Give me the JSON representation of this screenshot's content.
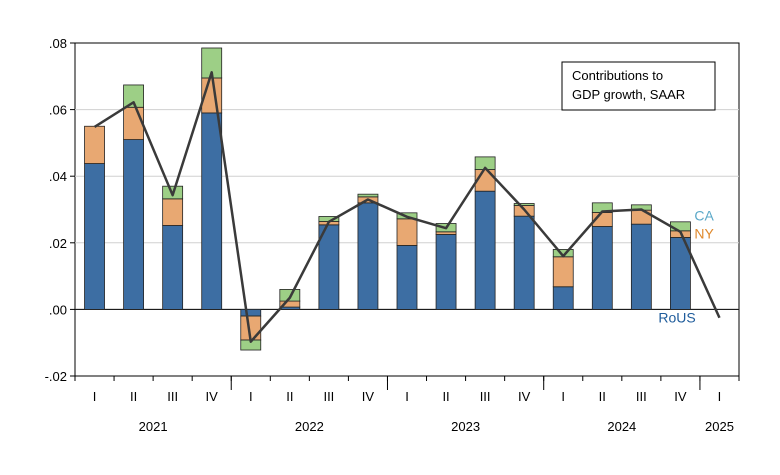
{
  "chart_data": {
    "type": "bar",
    "stacked": true,
    "annotation": [
      "Contributions to",
      "GDP growth, SAAR"
    ],
    "quarters": [
      "I",
      "II",
      "III",
      "IV",
      "I",
      "II",
      "III",
      "IV",
      "I",
      "II",
      "III",
      "IV",
      "I",
      "II",
      "III",
      "IV",
      "I"
    ],
    "years": [
      {
        "label": "2021",
        "start": 0,
        "end": 3
      },
      {
        "label": "2022",
        "start": 4,
        "end": 7
      },
      {
        "label": "2023",
        "start": 8,
        "end": 11
      },
      {
        "label": "2024",
        "start": 12,
        "end": 15
      },
      {
        "label": "2025",
        "start": 16,
        "end": 16
      }
    ],
    "ylim": [
      -0.02,
      0.08
    ],
    "yticks": [
      -0.02,
      0.0,
      0.02,
      0.04,
      0.06,
      0.08
    ],
    "ytick_labels": [
      "-.02",
      ".00",
      ".02",
      ".04",
      ".06",
      ".08"
    ],
    "grid": true,
    "series": [
      {
        "name": "RoUS",
        "color": "#3d6ea3",
        "values": [
          0.0438,
          0.051,
          0.0252,
          0.059,
          -0.002,
          0.0007,
          0.0254,
          0.032,
          0.0192,
          0.0225,
          0.0355,
          0.028,
          0.0068,
          0.0249,
          0.0256,
          0.0216,
          null
        ]
      },
      {
        "name": "NY",
        "color": "#e8a872",
        "values": [
          0.0112,
          0.0097,
          0.008,
          0.0105,
          -0.0072,
          0.0018,
          0.001,
          0.0018,
          0.008,
          0.0008,
          0.0065,
          0.0032,
          0.009,
          0.0042,
          0.0042,
          0.002,
          null
        ]
      },
      {
        "name": "CA",
        "color": "#9dcf86",
        "values": [
          0.0,
          0.0067,
          0.0038,
          0.009,
          -0.003,
          0.0035,
          0.0015,
          0.0008,
          0.0018,
          0.0025,
          0.0038,
          0.0006,
          0.0022,
          0.0029,
          0.0016,
          0.0027,
          null
        ]
      }
    ],
    "total_line": {
      "color": "#3a3a3a",
      "values": [
        0.0548,
        0.0622,
        0.0343,
        0.0712,
        -0.0097,
        0.0035,
        0.0263,
        0.033,
        0.0278,
        0.0244,
        0.0425,
        0.03,
        0.016,
        0.0294,
        0.03,
        0.0233,
        -0.0025
      ]
    },
    "series_labels": [
      {
        "text": "CA",
        "color": "#5aa8c8"
      },
      {
        "text": "NY",
        "color": "#e08a2e"
      },
      {
        "text": "RoUS",
        "color": "#1f5c9b"
      }
    ]
  }
}
